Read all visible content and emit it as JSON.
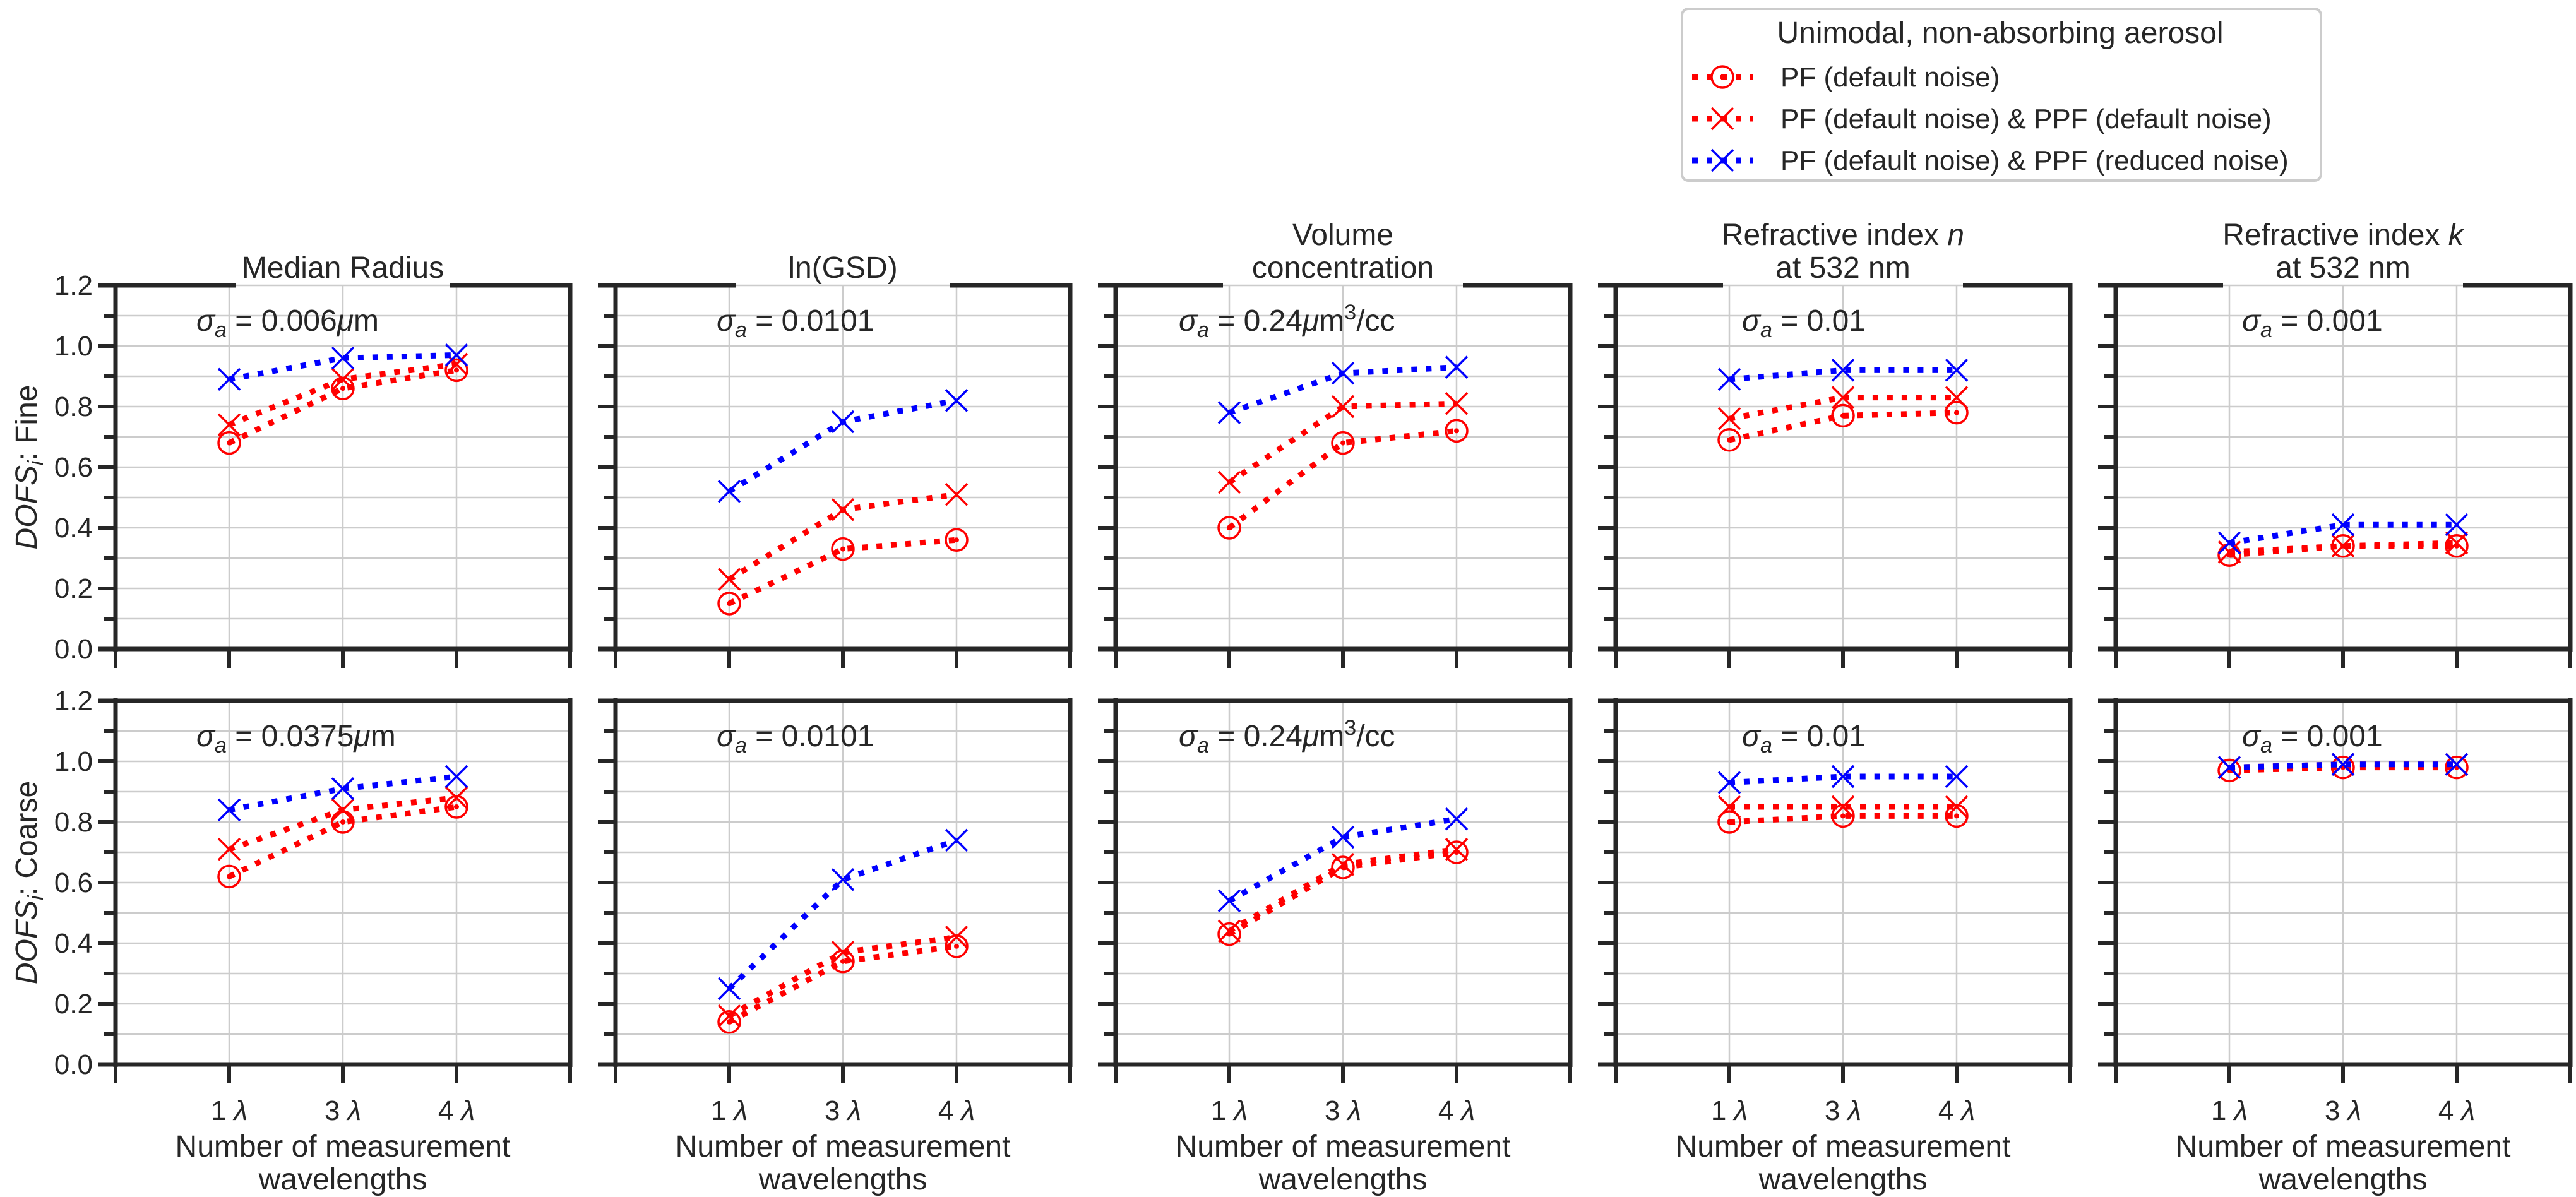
{
  "chart_data": {
    "type": "line",
    "title": "",
    "legend": {
      "title": "Unimodal, non-absorbing aerosol",
      "placement": "top-right",
      "entries": [
        {
          "key": "pf",
          "label": "PF (default noise)",
          "color": "#ff0000",
          "marker": "circle-dot",
          "linestyle": "dotted"
        },
        {
          "key": "pf_ppf",
          "label": "PF (default noise) & PPF (default noise)",
          "color": "#ff0000",
          "marker": "x",
          "linestyle": "dotted"
        },
        {
          "key": "pf_ppf_reduced",
          "label": "PF (default noise) & PPF (reduced noise)",
          "color": "#0000ff",
          "marker": "x",
          "linestyle": "dotted"
        }
      ]
    },
    "x_categories": [
      "1 λ",
      "3 λ",
      "4 λ"
    ],
    "x_tick_number": [
      "1",
      "3",
      "4"
    ],
    "x_tick_symbol": "λ",
    "xlabel_line1": "Number of measurement",
    "xlabel_line2": "wavelengths",
    "ylim": [
      0.0,
      1.2
    ],
    "yticks": [
      "0.0",
      "0.2",
      "0.4",
      "0.6",
      "0.8",
      "1.0",
      "1.2"
    ],
    "grid": true,
    "rows": [
      {
        "key": "fine",
        "ylabel_italic": "DOFS",
        "ylabel_sub": "i",
        "ylabel_rest": ": Fine"
      },
      {
        "key": "coarse",
        "ylabel_italic": "DOFS",
        "ylabel_sub": "i",
        "ylabel_rest": ": Coarse"
      }
    ],
    "columns": [
      {
        "title_line1": "Median Radius",
        "title_line2": "",
        "title_italic": "",
        "annotation_value": "0.006",
        "annotation_unit": "μm",
        "annotation_sup": "",
        "annotation_tail": "",
        "annotation_coarse_value": "0.0375"
      },
      {
        "title_line1": "ln(GSD)",
        "title_line2": "",
        "title_italic": "",
        "annotation_value": "0.0101",
        "annotation_unit": "",
        "annotation_sup": "",
        "annotation_tail": "",
        "annotation_coarse_value": "0.0101"
      },
      {
        "title_line1": "Volume",
        "title_line2": "concentration",
        "title_italic": "",
        "annotation_value": "0.24",
        "annotation_unit": "μm",
        "annotation_sup": "3",
        "annotation_tail": "/cc",
        "annotation_coarse_value": "0.24"
      },
      {
        "title_line1": "Refractive index ",
        "title_line2": "at 532 nm",
        "title_italic": "n",
        "annotation_value": "0.01",
        "annotation_unit": "",
        "annotation_sup": "",
        "annotation_tail": "",
        "annotation_coarse_value": "0.01"
      },
      {
        "title_line1": "Refractive index ",
        "title_line2": "at 532 nm",
        "title_italic": "k",
        "annotation_value": "0.001",
        "annotation_unit": "",
        "annotation_sup": "",
        "annotation_tail": "",
        "annotation_coarse_value": "0.001"
      }
    ],
    "annotation_prefix": "σ",
    "annotation_sub": "a",
    "annotation_eq": " = ",
    "panels": [
      {
        "row": "fine",
        "column": "Median Radius",
        "series": {
          "pf": [
            0.68,
            0.86,
            0.92
          ],
          "pf_ppf": [
            0.74,
            0.89,
            0.94
          ],
          "pf_ppf_reduced": [
            0.89,
            0.96,
            0.97
          ]
        }
      },
      {
        "row": "fine",
        "column": "ln(GSD)",
        "series": {
          "pf": [
            0.15,
            0.33,
            0.36
          ],
          "pf_ppf": [
            0.23,
            0.46,
            0.51
          ],
          "pf_ppf_reduced": [
            0.52,
            0.75,
            0.82
          ]
        }
      },
      {
        "row": "fine",
        "column": "Volume concentration",
        "series": {
          "pf": [
            0.4,
            0.68,
            0.72
          ],
          "pf_ppf": [
            0.55,
            0.8,
            0.81
          ],
          "pf_ppf_reduced": [
            0.78,
            0.91,
            0.93
          ]
        }
      },
      {
        "row": "fine",
        "column": "Refractive index n at 532 nm",
        "series": {
          "pf": [
            0.69,
            0.77,
            0.78
          ],
          "pf_ppf": [
            0.76,
            0.83,
            0.83
          ],
          "pf_ppf_reduced": [
            0.89,
            0.92,
            0.92
          ]
        }
      },
      {
        "row": "fine",
        "column": "Refractive index k at 532 nm",
        "series": {
          "pf": [
            0.31,
            0.34,
            0.34
          ],
          "pf_ppf": [
            0.32,
            0.34,
            0.35
          ],
          "pf_ppf_reduced": [
            0.35,
            0.41,
            0.41
          ]
        }
      },
      {
        "row": "coarse",
        "column": "Median Radius",
        "series": {
          "pf": [
            0.62,
            0.8,
            0.85
          ],
          "pf_ppf": [
            0.71,
            0.84,
            0.88
          ],
          "pf_ppf_reduced": [
            0.84,
            0.91,
            0.95
          ]
        }
      },
      {
        "row": "coarse",
        "column": "ln(GSD)",
        "series": {
          "pf": [
            0.14,
            0.34,
            0.39
          ],
          "pf_ppf": [
            0.16,
            0.37,
            0.42
          ],
          "pf_ppf_reduced": [
            0.25,
            0.61,
            0.74
          ]
        }
      },
      {
        "row": "coarse",
        "column": "Volume concentration",
        "series": {
          "pf": [
            0.43,
            0.65,
            0.7
          ],
          "pf_ppf": [
            0.44,
            0.66,
            0.71
          ],
          "pf_ppf_reduced": [
            0.54,
            0.75,
            0.81
          ]
        }
      },
      {
        "row": "coarse",
        "column": "Refractive index n at 532 nm",
        "series": {
          "pf": [
            0.8,
            0.82,
            0.82
          ],
          "pf_ppf": [
            0.85,
            0.85,
            0.85
          ],
          "pf_ppf_reduced": [
            0.93,
            0.95,
            0.95
          ]
        }
      },
      {
        "row": "coarse",
        "column": "Refractive index k at 532 nm",
        "series": {
          "pf": [
            0.97,
            0.98,
            0.98
          ],
          "pf_ppf": [
            0.98,
            0.99,
            0.99
          ],
          "pf_ppf_reduced": [
            0.98,
            0.99,
            0.99
          ]
        }
      }
    ]
  }
}
